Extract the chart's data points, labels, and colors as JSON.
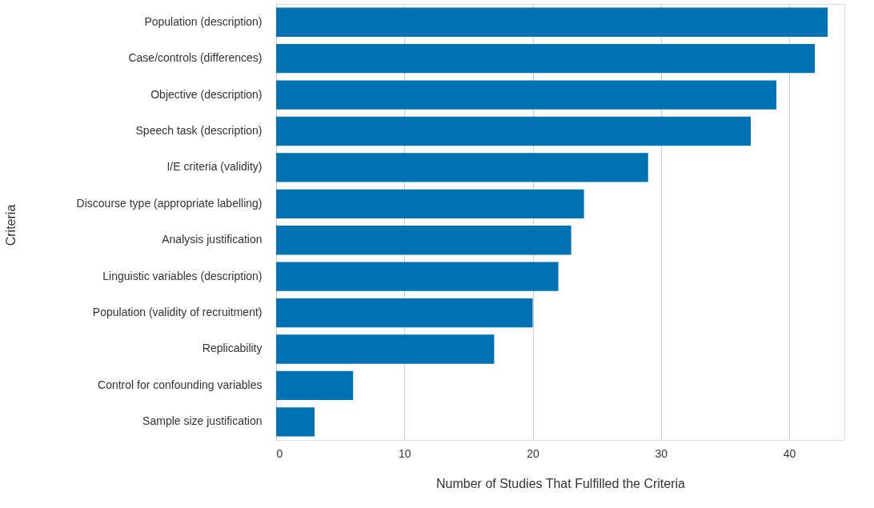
{
  "chart_data": {
    "type": "bar",
    "orientation": "horizontal",
    "categories": [
      "Population (description)",
      "Case/controls (differences)",
      "Objective (description)",
      "Speech task (description)",
      "I/E criteria (validity)",
      "Discourse type (appropriate labelling)",
      "Analysis justification",
      "Linguistic variables (description)",
      "Population (validity of recruitment)",
      "Replicability",
      "Control for confounding variables",
      "Sample size justification"
    ],
    "values": [
      43,
      42,
      39,
      37,
      29,
      24,
      23,
      22,
      20,
      17,
      6,
      3
    ],
    "color": "#0072b2",
    "xlabel": "Number of Studies That Fulfilled the Criteria",
    "ylabel": "Criteria",
    "xlim": [
      0,
      44.3
    ],
    "xticks": [
      0,
      10,
      20,
      30,
      40
    ],
    "grid": "x"
  }
}
